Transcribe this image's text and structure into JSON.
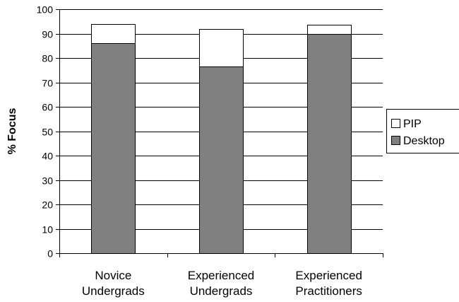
{
  "chart_data": {
    "type": "bar",
    "stacked": true,
    "categories": [
      [
        "Novice",
        "Undergrads"
      ],
      [
        "Experienced",
        "Undergrads"
      ],
      [
        "Experienced",
        "Practitioners"
      ]
    ],
    "series": [
      {
        "name": "Desktop",
        "values": [
          86,
          76.5,
          90
        ],
        "color": "#808080"
      },
      {
        "name": "PIP",
        "values": [
          8,
          15.5,
          3.7
        ],
        "color": "#ffffff"
      }
    ],
    "ylabel": "% Focus",
    "xlabel": "",
    "ylim": [
      0,
      100
    ],
    "yticks": [
      0,
      10,
      20,
      30,
      40,
      50,
      60,
      70,
      80,
      90,
      100
    ],
    "grid": true,
    "legend": {
      "position": "right",
      "order": [
        "PIP",
        "Desktop"
      ]
    }
  }
}
